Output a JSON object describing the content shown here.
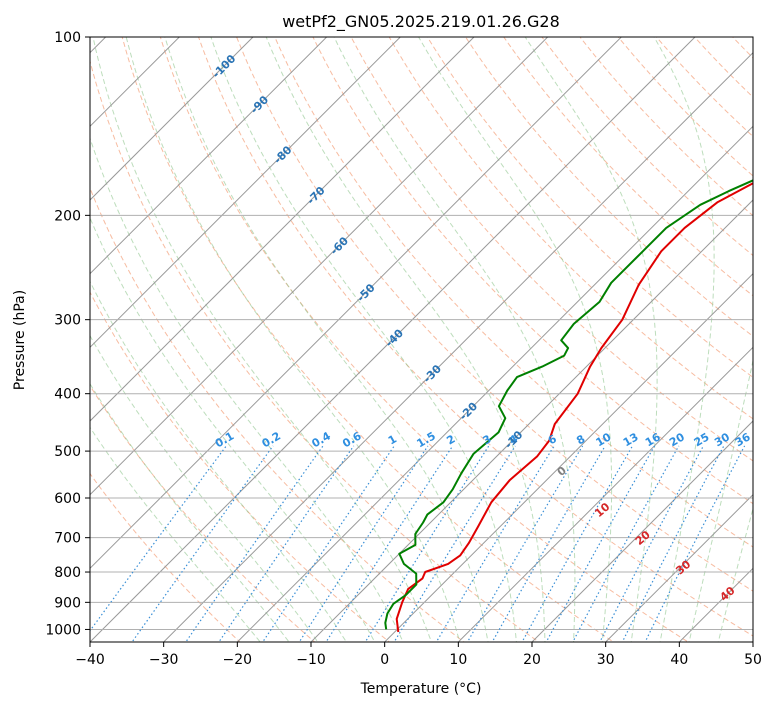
{
  "chart_data": {
    "type": "line",
    "title": "wetPf2_GN05.2025.219.01.26.G28",
    "xlabel": "Temperature (°C)",
    "ylabel": "Pressure (hPa)",
    "xlim": [
      -40,
      50
    ],
    "ylim": [
      1050,
      100
    ],
    "y_scale": "log",
    "x_ticks": [
      -40,
      -30,
      -20,
      -10,
      0,
      10,
      20,
      30,
      40,
      50
    ],
    "y_ticks": [
      1000,
      900,
      800,
      700,
      600,
      500,
      400,
      300,
      200,
      100
    ],
    "grid": true,
    "isotherm_labels": [
      {
        "text": "-100",
        "t": -100,
        "p": 112
      },
      {
        "text": "-90",
        "t": -90,
        "p": 130
      },
      {
        "text": "-80",
        "t": -80,
        "p": 158
      },
      {
        "text": "-70",
        "t": -70,
        "p": 185
      },
      {
        "text": "-60",
        "t": -60,
        "p": 225
      },
      {
        "text": "-50",
        "t": -50,
        "p": 270
      },
      {
        "text": "-40",
        "t": -40,
        "p": 322
      },
      {
        "text": "-30",
        "t": -30,
        "p": 370
      },
      {
        "text": "-20",
        "t": -20,
        "p": 428
      },
      {
        "text": "-10",
        "t": -10,
        "p": 478
      }
    ],
    "mixing_ratio_labels": [
      "0.1",
      "0.2",
      "0.4",
      "0.6",
      "1",
      "1.5",
      "2",
      "3",
      "4",
      "6",
      "8",
      "10",
      "13",
      "16",
      "20",
      "25",
      "30",
      "36"
    ],
    "moist_adiabat_labels": [
      {
        "text": "0",
        "t": 24,
        "p": 540
      },
      {
        "text": "10",
        "t": 29.5,
        "p": 628
      },
      {
        "text": "20",
        "t": 35,
        "p": 700
      },
      {
        "text": "30",
        "t": 40.5,
        "p": 785
      },
      {
        "text": "40",
        "t": 46.5,
        "p": 870
      }
    ],
    "series": [
      {
        "color": "#e00000",
        "points": [
          {
            "t": 0.5,
            "p": 1010
          },
          {
            "t": -1.5,
            "p": 960
          },
          {
            "t": -3.0,
            "p": 900
          },
          {
            "t": -4.0,
            "p": 855
          },
          {
            "t": -3.5,
            "p": 820
          },
          {
            "t": -4.0,
            "p": 800
          },
          {
            "t": -2.0,
            "p": 775
          },
          {
            "t": -1.5,
            "p": 750
          },
          {
            "t": -2.0,
            "p": 715
          },
          {
            "t": -3.0,
            "p": 670
          },
          {
            "t": -4.5,
            "p": 610
          },
          {
            "t": -5.0,
            "p": 560
          },
          {
            "t": -4.5,
            "p": 510
          },
          {
            "t": -5.0,
            "p": 480
          },
          {
            "t": -6.5,
            "p": 450
          },
          {
            "t": -7.5,
            "p": 400
          },
          {
            "t": -9.5,
            "p": 360
          },
          {
            "t": -10.5,
            "p": 335
          },
          {
            "t": -11.5,
            "p": 300
          },
          {
            "t": -14.0,
            "p": 262
          },
          {
            "t": -15.5,
            "p": 230
          },
          {
            "t": -15.5,
            "p": 210
          },
          {
            "t": -14.5,
            "p": 190
          },
          {
            "t": -12.0,
            "p": 175
          },
          {
            "t": -7.5,
            "p": 160
          },
          {
            "t": -2.5,
            "p": 145
          },
          {
            "t": 0.0,
            "p": 133
          },
          {
            "t": 2.0,
            "p": 122
          },
          {
            "t": 5.0,
            "p": 111
          },
          {
            "t": 9.0,
            "p": 100
          }
        ]
      },
      {
        "color": "#008000",
        "points": [
          {
            "t": -1.5,
            "p": 1000
          },
          {
            "t": -2.5,
            "p": 975
          },
          {
            "t": -3.5,
            "p": 940
          },
          {
            "t": -4.0,
            "p": 905
          },
          {
            "t": -3.5,
            "p": 875
          },
          {
            "t": -3.5,
            "p": 840
          },
          {
            "t": -5.0,
            "p": 805
          },
          {
            "t": -8.0,
            "p": 775
          },
          {
            "t": -10.0,
            "p": 745
          },
          {
            "t": -9.0,
            "p": 720
          },
          {
            "t": -10.5,
            "p": 690
          },
          {
            "t": -11.0,
            "p": 660
          },
          {
            "t": -11.5,
            "p": 640
          },
          {
            "t": -11.0,
            "p": 610
          },
          {
            "t": -11.5,
            "p": 580
          },
          {
            "t": -12.5,
            "p": 545
          },
          {
            "t": -13.5,
            "p": 505
          },
          {
            "t": -13.0,
            "p": 465
          },
          {
            "t": -14.0,
            "p": 440
          },
          {
            "t": -16.5,
            "p": 420
          },
          {
            "t": -17.5,
            "p": 395
          },
          {
            "t": -18.0,
            "p": 375
          },
          {
            "t": -16.0,
            "p": 360
          },
          {
            "t": -14.5,
            "p": 345
          },
          {
            "t": -15.0,
            "p": 335
          },
          {
            "t": -17.0,
            "p": 325
          },
          {
            "t": -17.5,
            "p": 305
          },
          {
            "t": -17.0,
            "p": 280
          },
          {
            "t": -18.0,
            "p": 260
          },
          {
            "t": -18.0,
            "p": 230
          },
          {
            "t": -18.0,
            "p": 210
          },
          {
            "t": -16.5,
            "p": 192
          },
          {
            "t": -14.5,
            "p": 182
          },
          {
            "t": -11.5,
            "p": 170
          },
          {
            "t": -10.0,
            "p": 155
          },
          {
            "t": -9.5,
            "p": 145
          },
          {
            "t": -8.0,
            "p": 135
          },
          {
            "t": -6.0,
            "p": 125
          },
          {
            "t": -4.0,
            "p": 115
          },
          {
            "t": -1.0,
            "p": 105
          },
          {
            "t": 0.5,
            "p": 100
          }
        ]
      }
    ]
  }
}
